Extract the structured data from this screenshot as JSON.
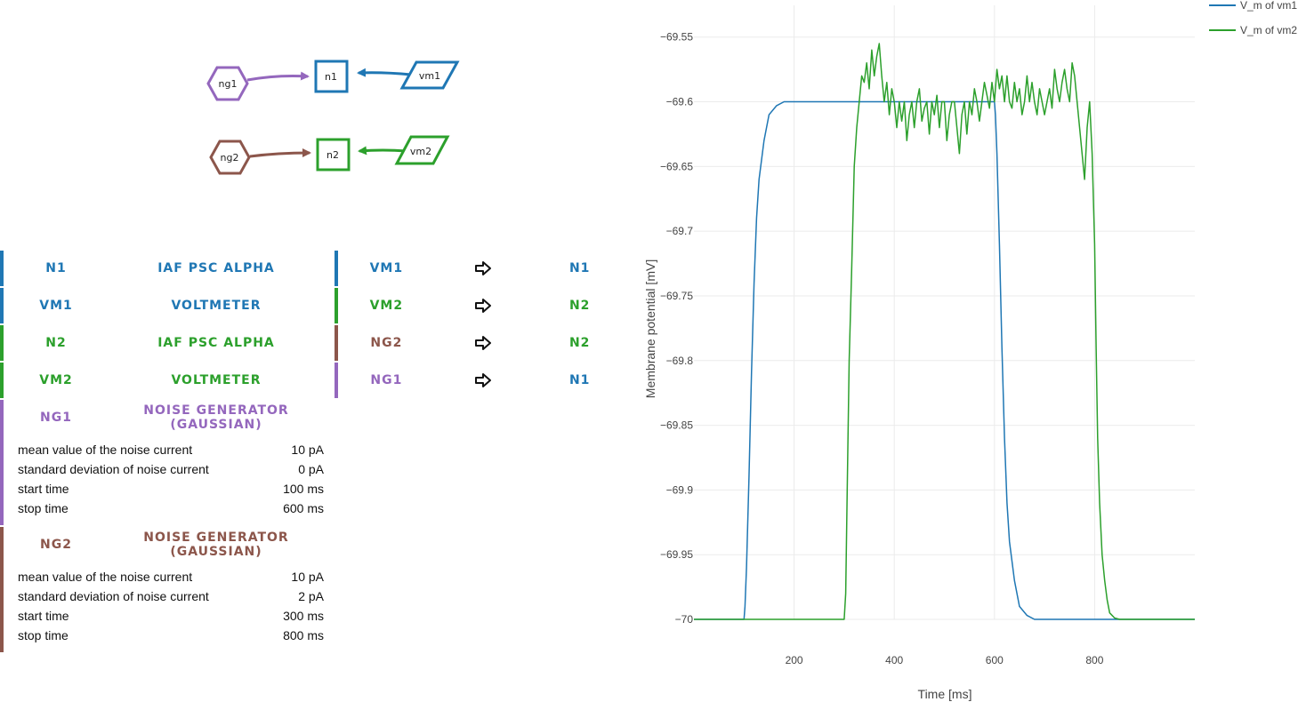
{
  "colors": {
    "n1": "#1f77b4",
    "vm1": "#1f77b4",
    "n2": "#2ca02c",
    "vm2": "#2ca02c",
    "ng1": "#9467bd",
    "ng2": "#8c564b"
  },
  "graph": {
    "nodes": [
      {
        "id": "ng1",
        "label": "ng1",
        "shape": "hexagon"
      },
      {
        "id": "n1",
        "label": "n1",
        "shape": "square"
      },
      {
        "id": "vm1",
        "label": "vm1",
        "shape": "parallelogram"
      },
      {
        "id": "ng2",
        "label": "ng2",
        "shape": "hexagon"
      },
      {
        "id": "n2",
        "label": "n2",
        "shape": "square"
      },
      {
        "id": "vm2",
        "label": "vm2",
        "shape": "parallelogram"
      }
    ]
  },
  "nodes": [
    {
      "id": "n1",
      "label": "N1",
      "model": "IAF PSC ALPHA",
      "color": "#1f77b4",
      "params": []
    },
    {
      "id": "vm1",
      "label": "VM1",
      "model": "VOLTMETER",
      "color": "#1f77b4",
      "params": []
    },
    {
      "id": "n2",
      "label": "N2",
      "model": "IAF PSC ALPHA",
      "color": "#2ca02c",
      "params": []
    },
    {
      "id": "vm2",
      "label": "VM2",
      "model": "VOLTMETER",
      "color": "#2ca02c",
      "params": []
    },
    {
      "id": "ng1",
      "label": "NG1",
      "model": "NOISE GENERATOR (GAUSSIAN)",
      "color": "#9467bd",
      "params": [
        {
          "label": "mean value of the noise current",
          "value": "10 pA"
        },
        {
          "label": "standard deviation of noise current",
          "value": "0 pA"
        },
        {
          "label": "start time",
          "value": "100 ms"
        },
        {
          "label": "stop time",
          "value": "600 ms"
        }
      ]
    },
    {
      "id": "ng2",
      "label": "NG2",
      "model": "NOISE GENERATOR (GAUSSIAN)",
      "color": "#8c564b",
      "params": [
        {
          "label": "mean value of the noise current",
          "value": "10 pA"
        },
        {
          "label": "standard deviation of noise current",
          "value": "2 pA"
        },
        {
          "label": "start time",
          "value": "300 ms"
        },
        {
          "label": "stop time",
          "value": "800 ms"
        }
      ]
    }
  ],
  "connections": [
    {
      "source": "VM1",
      "target": "N1",
      "source_color": "#1f77b4",
      "target_color": "#1f77b4",
      "arrow_icon": "arrow-right-icon"
    },
    {
      "source": "VM2",
      "target": "N2",
      "source_color": "#2ca02c",
      "target_color": "#2ca02c",
      "arrow_icon": "arrow-right-icon"
    },
    {
      "source": "NG2",
      "target": "N2",
      "source_color": "#8c564b",
      "target_color": "#2ca02c",
      "arrow_icon": "arrow-right-icon"
    },
    {
      "source": "NG1",
      "target": "N1",
      "source_color": "#9467bd",
      "target_color": "#1f77b4",
      "arrow_icon": "arrow-right-icon"
    }
  ],
  "chart_data": {
    "type": "line",
    "title": "",
    "xlabel": "Time [ms]",
    "ylabel": "Membrane potential [mV]",
    "xlim": [
      0,
      1000
    ],
    "ylim": [
      -70.01,
      -69.545
    ],
    "xticks": [
      200,
      400,
      600,
      800
    ],
    "yticks": [
      -69.55,
      -69.6,
      -69.65,
      -69.7,
      -69.75,
      -69.8,
      -69.85,
      -69.9,
      -69.95,
      -70
    ],
    "ytick_labels": [
      "−69.55",
      "−69.6",
      "−69.65",
      "−69.7",
      "−69.75",
      "−69.8",
      "−69.85",
      "−69.9",
      "−69.95",
      "−70"
    ],
    "grid": true,
    "legend_position": "top-right",
    "series": [
      {
        "name": "V_m of vm1",
        "color": "#1f77b4",
        "x": [
          0,
          100,
          102,
          105,
          110,
          115,
          120,
          125,
          130,
          140,
          150,
          165,
          180,
          200,
          300,
          400,
          500,
          600,
          602,
          605,
          610,
          615,
          620,
          625,
          630,
          640,
          650,
          665,
          680,
          700,
          800,
          900,
          1000
        ],
        "y": [
          -70,
          -70,
          -69.99,
          -69.96,
          -69.89,
          -69.81,
          -69.74,
          -69.69,
          -69.66,
          -69.63,
          -69.61,
          -69.603,
          -69.6,
          -69.6,
          -69.6,
          -69.6,
          -69.6,
          -69.6,
          -69.61,
          -69.64,
          -69.71,
          -69.79,
          -69.86,
          -69.91,
          -69.94,
          -69.97,
          -69.99,
          -69.997,
          -70,
          -70,
          -70,
          -70,
          -70
        ]
      },
      {
        "name": "V_m of vm2",
        "color": "#2ca02c",
        "x": [
          0,
          300,
          303,
          306,
          310,
          315,
          320,
          325,
          330,
          335,
          340,
          345,
          350,
          355,
          360,
          365,
          370,
          375,
          380,
          385,
          390,
          395,
          400,
          405,
          410,
          415,
          420,
          425,
          430,
          435,
          440,
          445,
          450,
          455,
          460,
          465,
          470,
          475,
          480,
          485,
          490,
          495,
          500,
          505,
          510,
          515,
          520,
          525,
          530,
          535,
          540,
          545,
          550,
          555,
          560,
          565,
          570,
          575,
          580,
          585,
          590,
          595,
          600,
          605,
          610,
          615,
          620,
          625,
          630,
          635,
          640,
          645,
          650,
          655,
          660,
          665,
          670,
          675,
          680,
          685,
          690,
          695,
          700,
          705,
          710,
          715,
          720,
          725,
          730,
          735,
          740,
          745,
          750,
          755,
          760,
          765,
          770,
          775,
          780,
          785,
          790,
          795,
          800,
          803,
          806,
          810,
          815,
          820,
          825,
          830,
          840,
          850,
          865,
          880,
          900,
          1000
        ],
        "y": [
          -70,
          -70,
          -69.98,
          -69.9,
          -69.8,
          -69.73,
          -69.65,
          -69.62,
          -69.6,
          -69.58,
          -69.585,
          -69.57,
          -69.59,
          -69.56,
          -69.58,
          -69.565,
          -69.555,
          -69.58,
          -69.6,
          -69.585,
          -69.61,
          -69.59,
          -69.6,
          -69.62,
          -69.6,
          -69.615,
          -69.6,
          -69.63,
          -69.61,
          -69.6,
          -69.62,
          -69.6,
          -69.59,
          -69.615,
          -69.605,
          -69.6,
          -69.625,
          -69.6,
          -69.61,
          -69.595,
          -69.62,
          -69.6,
          -69.6,
          -69.63,
          -69.61,
          -69.6,
          -69.6,
          -69.62,
          -69.64,
          -69.61,
          -69.6,
          -69.625,
          -69.6,
          -69.61,
          -69.59,
          -69.6,
          -69.615,
          -69.6,
          -69.585,
          -69.595,
          -69.605,
          -69.585,
          -69.6,
          -69.575,
          -69.59,
          -69.58,
          -69.6,
          -69.58,
          -69.6,
          -69.605,
          -69.585,
          -69.6,
          -69.59,
          -69.61,
          -69.6,
          -69.58,
          -69.6,
          -69.585,
          -69.6,
          -69.61,
          -69.59,
          -69.6,
          -69.61,
          -69.6,
          -69.59,
          -69.605,
          -69.575,
          -69.59,
          -69.6,
          -69.585,
          -69.575,
          -69.59,
          -69.6,
          -69.57,
          -69.58,
          -69.6,
          -69.62,
          -69.64,
          -69.66,
          -69.62,
          -69.6,
          -69.64,
          -69.71,
          -69.79,
          -69.86,
          -69.91,
          -69.95,
          -69.97,
          -69.985,
          -69.995,
          -69.999,
          -70,
          -70,
          -70,
          -70,
          -70
        ]
      }
    ]
  }
}
